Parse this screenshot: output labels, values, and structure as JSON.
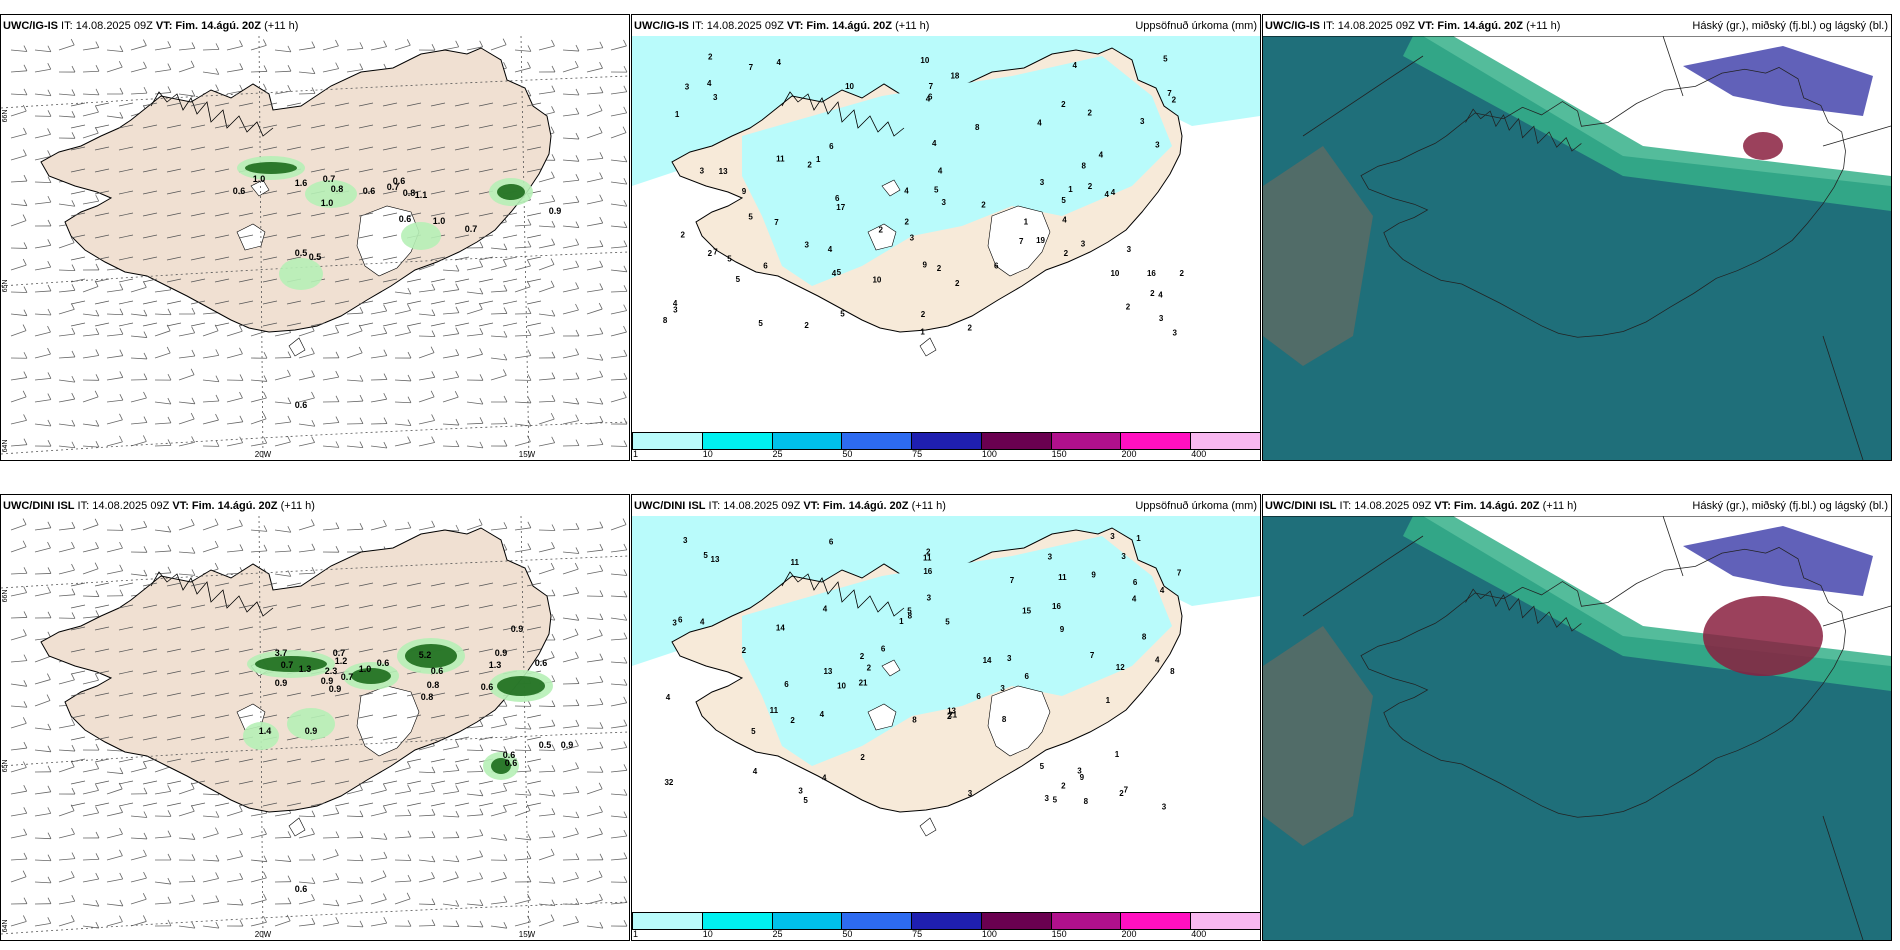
{
  "panels": [
    {
      "model": "UWC/IG-IS",
      "it_label": "IT:",
      "it": "14.08.2025 09Z",
      "vt_label": "VT:",
      "vt": "Fim. 14.ágú. 20Z",
      "lead": "(+11 h)",
      "title": ""
    },
    {
      "model": "UWC/IG-IS",
      "it_label": "IT:",
      "it": "14.08.2025 09Z",
      "vt_label": "VT:",
      "vt": "Fim. 14.ágú. 20Z",
      "lead": "(+11 h)",
      "title": "Uppsöfnuð úrkoma (mm)"
    },
    {
      "model": "UWC/IG-IS",
      "it_label": "IT:",
      "it": "14.08.2025 09Z",
      "vt_label": "VT:",
      "vt": "Fim. 14.ágú. 20Z",
      "lead": "(+11 h)",
      "title": "Háský (gr.), miðský (fj.bl.) og lágský (bl.)"
    },
    {
      "model": "UWC/DINI ISL",
      "it_label": "IT:",
      "it": "14.08.2025 09Z",
      "vt_label": "VT:",
      "vt": "Fim. 14.ágú. 20Z",
      "lead": "(+11 h)",
      "title": ""
    },
    {
      "model": "UWC/DINI ISL",
      "it_label": "IT:",
      "it": "14.08.2025 09Z",
      "vt_label": "VT:",
      "vt": "Fim. 14.ágú. 20Z",
      "lead": "(+11 h)",
      "title": "Uppsöfnuð úrkoma (mm)"
    },
    {
      "model": "UWC/DINI ISL",
      "it_label": "IT:",
      "it": "14.08.2025 09Z",
      "vt_label": "VT:",
      "vt": "Fim. 14.ágú. 20Z",
      "lead": "(+11 h)",
      "title": "Háský (gr.), miðský (fj.bl.) og lágský (bl.)"
    }
  ],
  "axes": {
    "lat_65": "65N",
    "lat_64": "64N",
    "lat_66": "66N",
    "lon_20": "20W",
    "lon_15": "15W"
  },
  "colorbar": {
    "ticks": [
      "1",
      "10",
      "25",
      "50",
      "75",
      "100",
      "150",
      "200",
      "400"
    ],
    "colors": [
      "#b9fbfb",
      "#00f0f0",
      "#00c0ea",
      "#2d6bf0",
      "#1f1fb0",
      "#6a0050",
      "#b0108c",
      "#ff10c0",
      "#f8b8f0"
    ]
  },
  "colors": {
    "land": "#f0e0d2",
    "precip_land": "#f7ead9",
    "sea": "#ffffff",
    "light_precip": "#b9fbfb",
    "green_light": "#b6f0b6",
    "green_dark": "#1c6b1c",
    "cloud_low": "#1f6f7a",
    "cloud_mid": "#36b08a",
    "cloud_high": "#3a3aa8"
  },
  "top_precip_labels": [
    "2",
    "7",
    "6",
    "5",
    "3",
    "4",
    "5",
    "2",
    "5",
    "7",
    "2",
    "3",
    "4",
    "5",
    "7",
    "8",
    "4",
    "5",
    "4",
    "4",
    "6",
    "7",
    "3",
    "2",
    "4",
    "6",
    "4",
    "2",
    "7",
    "9",
    "3",
    "17",
    "8",
    "11",
    "5",
    "4",
    "3",
    "18",
    "19",
    "10",
    "6",
    "8",
    "10",
    "5",
    "16",
    "2",
    "2",
    "4",
    "9",
    "4",
    "13",
    "6",
    "10",
    "4",
    "7",
    "2",
    "3",
    "10",
    "2",
    "5",
    "4",
    "3",
    "3",
    "1",
    "2",
    "2",
    "1",
    "2",
    "4",
    "2",
    "4",
    "2",
    "3",
    "3",
    "1",
    "3",
    "2",
    "3",
    "4",
    "2",
    "2",
    "1",
    "1",
    "2",
    "4",
    "3",
    "3",
    "2",
    "2",
    "5"
  ],
  "bottom_precip_labels": [
    "2",
    "4",
    "5",
    "8",
    "4",
    "8",
    "7",
    "5",
    "13",
    "14",
    "3",
    "2",
    "1",
    "6",
    "8",
    "5",
    "3",
    "11",
    "9",
    "13",
    "11",
    "6",
    "7",
    "5",
    "8",
    "12",
    "6",
    "9",
    "8",
    "2",
    "5",
    "4",
    "11",
    "2",
    "3",
    "4",
    "9",
    "14",
    "16",
    "21",
    "32",
    "15",
    "3",
    "10",
    "11",
    "6",
    "13",
    "21",
    "16",
    "8",
    "5",
    "2",
    "4",
    "6",
    "2",
    "3",
    "4",
    "1",
    "3",
    "4",
    "7",
    "5",
    "2",
    "6",
    "3",
    "3",
    "4",
    "3",
    "7",
    "4",
    "1",
    "6",
    "2",
    "3",
    "3",
    "1",
    "2",
    "3",
    "3"
  ],
  "top_wind_labels": [
    "0.6",
    "1.0",
    "1.6",
    "0.7",
    "0.8",
    "0.6",
    "0.7",
    "0.6",
    "0.8",
    "1.1",
    "1.0",
    "1.0",
    "0.6",
    "0.7",
    "0.9",
    "0.5",
    "0.5",
    "0.6"
  ],
  "bottom_wind_labels": [
    "3.7",
    "0.7",
    "1.3",
    "0.7",
    "1.2",
    "0.7",
    "1.0",
    "0.6",
    "0.9",
    "0.9",
    "2.3",
    "0.9",
    "5.2",
    "0.6",
    "0.8",
    "0.8",
    "0.9",
    "1.3",
    "0.6",
    "0.6",
    "0.9",
    "0.6",
    "0.5",
    "0.9",
    "1.4",
    "0.9",
    "0.6",
    "0.6"
  ]
}
